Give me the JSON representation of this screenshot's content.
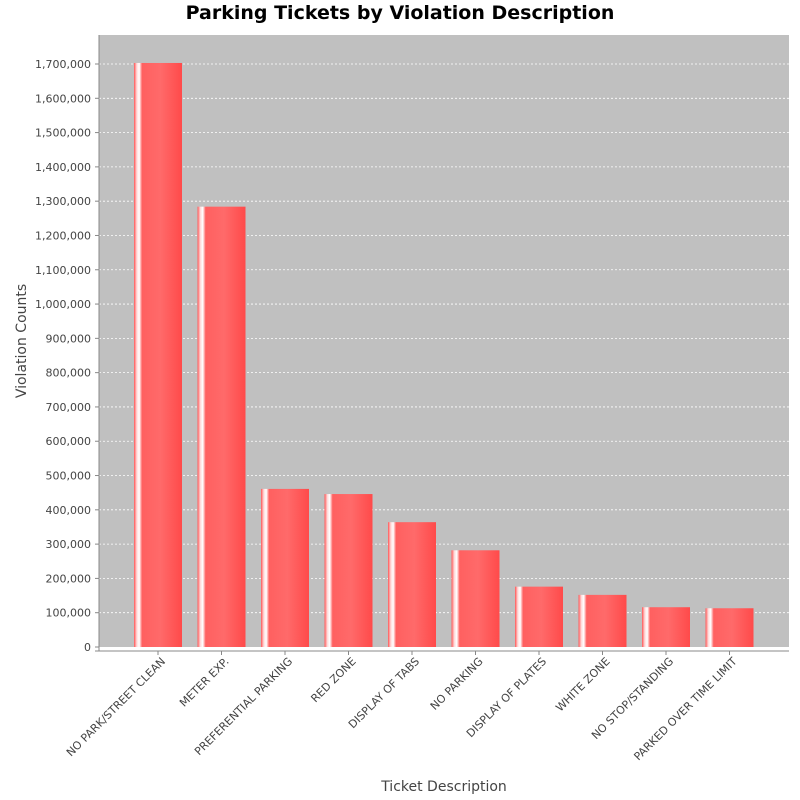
{
  "chart_data": {
    "type": "bar",
    "title": "Parking Tickets by Violation Description",
    "xlabel": "Ticket Description",
    "ylabel": "Violation Counts",
    "ylim": [
      0,
      1800000
    ],
    "yticks": [
      0,
      100000,
      200000,
      300000,
      400000,
      500000,
      600000,
      700000,
      800000,
      900000,
      1000000,
      1100000,
      1200000,
      1300000,
      1400000,
      1500000,
      1600000,
      1700000
    ],
    "ytick_labels": [
      "0",
      "100,000",
      "200,000",
      "300,000",
      "400,000",
      "500,000",
      "600,000",
      "700,000",
      "800,000",
      "900,000",
      "1,000,000",
      "1,100,000",
      "1,200,000",
      "1,300,000",
      "1,400,000",
      "1,500,000",
      "1,600,000",
      "1,700,000"
    ],
    "categories": [
      "NO PARK/STREET CLEAN",
      "METER EXP.",
      "PREFERENTIAL PARKING",
      "RED ZONE",
      "DISPLAY OF TABS",
      "NO PARKING",
      "DISPLAY OF PLATES",
      "WHITE ZONE",
      "NO STOP/STANDING",
      "PARKED OVER TIME LIMIT"
    ],
    "values": [
      1703000,
      1284000,
      461000,
      446000,
      364000,
      282000,
      176000,
      152000,
      116000,
      113000
    ],
    "grid": true,
    "legend": "none",
    "colors": {
      "bar": "#ff5555",
      "bar_highlight": "#ffffff",
      "plot_background": "#c0c0c0",
      "gridline": "#ffffff"
    }
  }
}
